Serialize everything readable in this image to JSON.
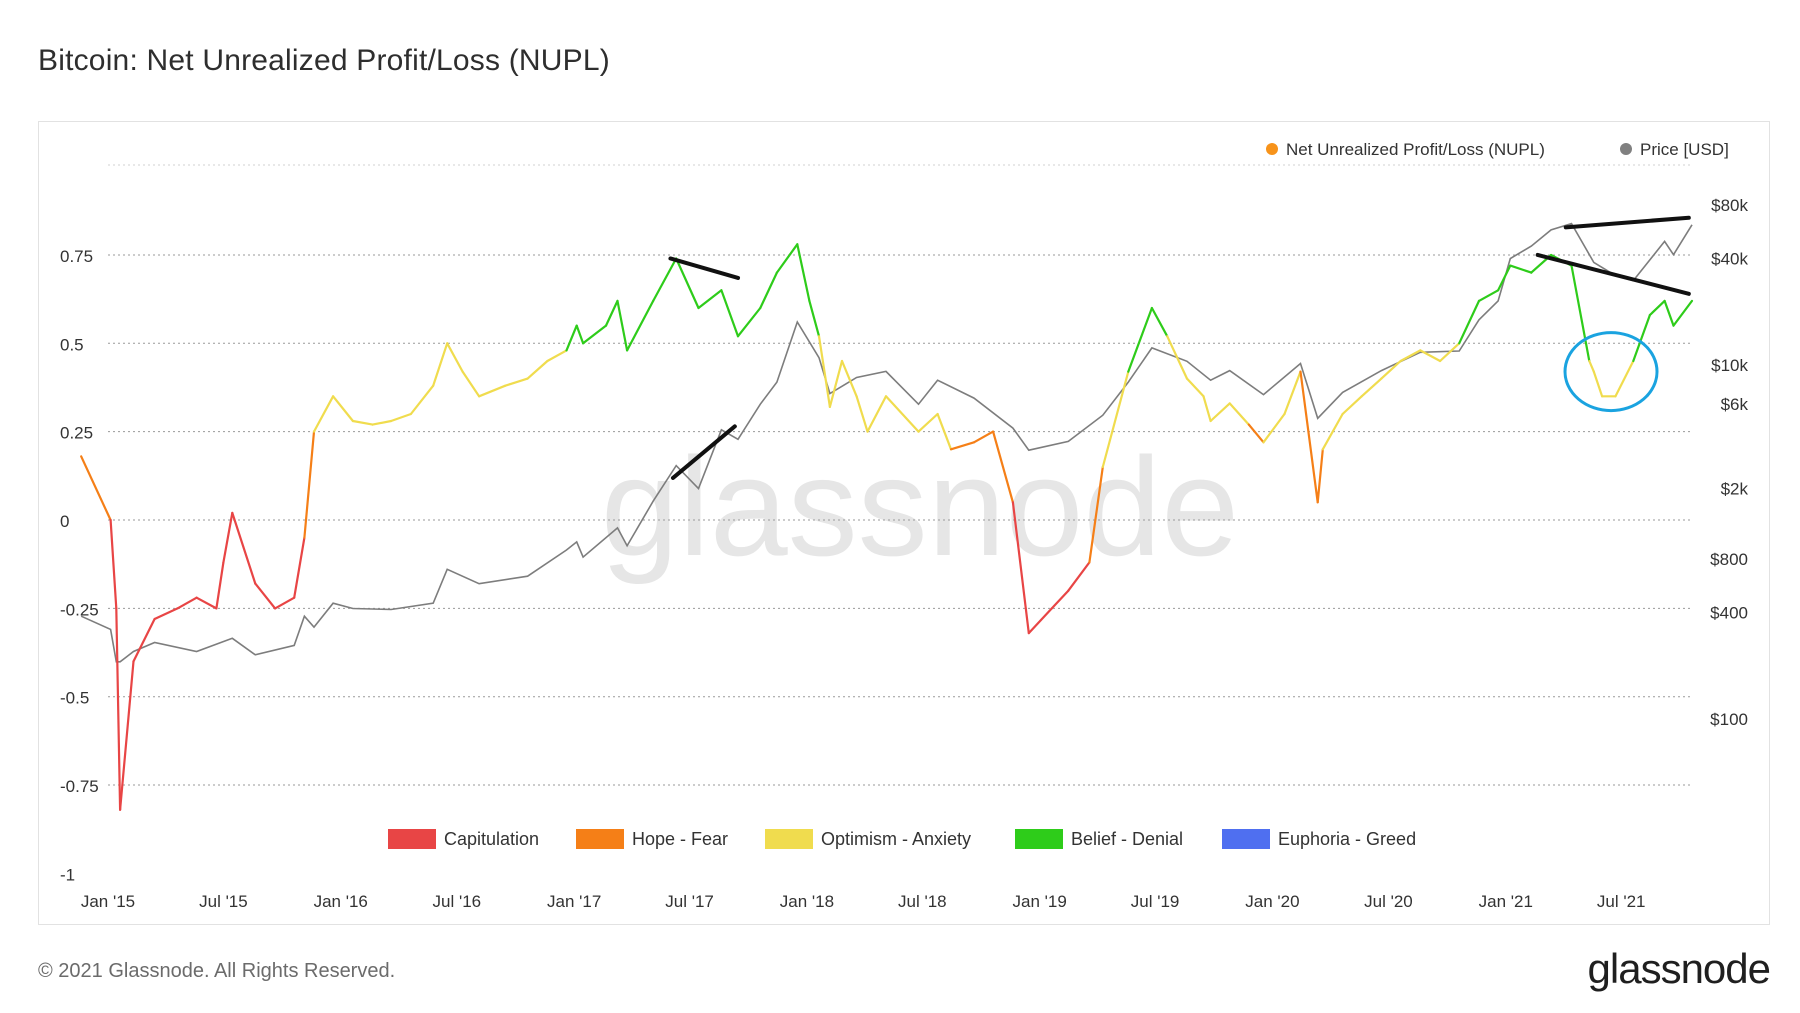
{
  "title": "Bitcoin: Net Unrealized Profit/Loss (NUPL)",
  "footer": {
    "copyright": "© 2021 Glassnode. All Rights Reserved.",
    "logo": "glassnode"
  },
  "watermark": "glassnode",
  "chart_data": {
    "type": "line",
    "title": "Bitcoin: Net Unrealized Profit/Loss (NUPL)",
    "legend_top": [
      {
        "name": "Net Unrealized Profit/Loss (NUPL)",
        "color": "#f7931a"
      },
      {
        "name": "Price [USD]",
        "color": "#808080"
      }
    ],
    "legend_bottom": [
      {
        "name": "Capitulation",
        "color": "#e84545"
      },
      {
        "name": "Hope - Fear",
        "color": "#f57f17"
      },
      {
        "name": "Optimism - Anxiety",
        "color": "#f0dc4e"
      },
      {
        "name": "Belief - Denial",
        "color": "#2ecc1a"
      },
      {
        "name": "Euphoria - Greed",
        "color": "#4f6ff0"
      }
    ],
    "x_ticks": [
      "Jan '15",
      "Jul '15",
      "Jan '16",
      "Jul '16",
      "Jan '17",
      "Jul '17",
      "Jan '18",
      "Jul '18",
      "Jan '19",
      "Jul '19",
      "Jan '20",
      "Jul '20",
      "Jan '21",
      "Jul '21"
    ],
    "x_range": [
      "2015-01-01",
      "2021-10-20"
    ],
    "y_left": {
      "ticks": [
        "0.75",
        "0.5",
        "0.25",
        "0",
        "-0.25",
        "-0.5",
        "-0.75",
        "-1"
      ],
      "range": [
        -1,
        1
      ]
    },
    "y_right": {
      "ticks": [
        "$80k",
        "$40k",
        "$10k",
        "$6k",
        "$2k",
        "$800",
        "$400",
        "$100"
      ],
      "scale": "log"
    },
    "nupl_series": {
      "name": "Net Unrealized Profit/Loss (NUPL)",
      "x": [
        "2014-11-20",
        "2015-01-05",
        "2015-01-14",
        "2015-01-20",
        "2015-02-10",
        "2015-03-15",
        "2015-04-20",
        "2015-05-20",
        "2015-06-20",
        "2015-07-01",
        "2015-07-15",
        "2015-08-20",
        "2015-09-20",
        "2015-10-20",
        "2015-11-05",
        "2015-11-20",
        "2015-12-20",
        "2016-01-20",
        "2016-02-20",
        "2016-03-20",
        "2016-04-20",
        "2016-05-25",
        "2016-06-16",
        "2016-07-10",
        "2016-08-05",
        "2016-09-15",
        "2016-10-20",
        "2016-11-20",
        "2016-12-20",
        "2017-01-05",
        "2017-01-15",
        "2017-02-20",
        "2017-03-10",
        "2017-03-25",
        "2017-05-05",
        "2017-06-10",
        "2017-07-15",
        "2017-08-20",
        "2017-09-15",
        "2017-10-20",
        "2017-11-15",
        "2017-12-17",
        "2018-01-05",
        "2018-01-20",
        "2018-02-06",
        "2018-02-25",
        "2018-03-20",
        "2018-04-06",
        "2018-05-05",
        "2018-06-25",
        "2018-07-25",
        "2018-08-15",
        "2018-09-20",
        "2018-10-20",
        "2018-11-20",
        "2018-12-15",
        "2019-01-20",
        "2019-02-15",
        "2019-03-20",
        "2019-04-10",
        "2019-05-20",
        "2019-06-26",
        "2019-07-20",
        "2019-08-20",
        "2019-09-15",
        "2019-09-26",
        "2019-10-26",
        "2019-11-25",
        "2019-12-18",
        "2020-01-20",
        "2020-02-14",
        "2020-03-12",
        "2020-03-20",
        "2020-04-20",
        "2020-05-20",
        "2020-06-20",
        "2020-07-20",
        "2020-08-20",
        "2020-09-20",
        "2020-10-20",
        "2020-11-20",
        "2020-12-20",
        "2021-01-08",
        "2021-02-10",
        "2021-03-13",
        "2021-04-14",
        "2021-05-12",
        "2021-05-19",
        "2021-06-01",
        "2021-06-22",
        "2021-07-20",
        "2021-08-15",
        "2021-09-07",
        "2021-09-21",
        "2021-10-20"
      ],
      "y": [
        0.18,
        0.0,
        -0.25,
        -0.82,
        -0.4,
        -0.28,
        -0.25,
        -0.22,
        -0.25,
        -0.12,
        0.02,
        -0.18,
        -0.25,
        -0.22,
        -0.05,
        0.25,
        0.35,
        0.28,
        0.27,
        0.28,
        0.3,
        0.38,
        0.5,
        0.42,
        0.35,
        0.38,
        0.4,
        0.45,
        0.48,
        0.55,
        0.5,
        0.55,
        0.62,
        0.48,
        0.62,
        0.74,
        0.6,
        0.65,
        0.52,
        0.6,
        0.7,
        0.78,
        0.62,
        0.52,
        0.32,
        0.45,
        0.35,
        0.25,
        0.35,
        0.25,
        0.3,
        0.2,
        0.22,
        0.25,
        0.05,
        -0.32,
        -0.25,
        -0.2,
        -0.12,
        0.15,
        0.42,
        0.6,
        0.52,
        0.4,
        0.35,
        0.28,
        0.33,
        0.27,
        0.22,
        0.3,
        0.42,
        0.05,
        0.2,
        0.3,
        0.35,
        0.4,
        0.45,
        0.48,
        0.45,
        0.5,
        0.62,
        0.65,
        0.72,
        0.7,
        0.75,
        0.72,
        0.45,
        0.42,
        0.35,
        0.35,
        0.45,
        0.58,
        0.62,
        0.55,
        0.62
      ]
    },
    "price_series": {
      "name": "Price [USD]",
      "x": [
        "2014-11-20",
        "2015-01-05",
        "2015-01-14",
        "2015-01-20",
        "2015-02-10",
        "2015-03-15",
        "2015-05-20",
        "2015-07-15",
        "2015-08-20",
        "2015-10-20",
        "2015-11-05",
        "2015-11-20",
        "2015-12-20",
        "2016-01-20",
        "2016-03-20",
        "2016-05-25",
        "2016-06-16",
        "2016-08-05",
        "2016-10-20",
        "2016-12-20",
        "2017-01-05",
        "2017-01-15",
        "2017-03-10",
        "2017-03-25",
        "2017-05-05",
        "2017-06-10",
        "2017-07-15",
        "2017-08-20",
        "2017-09-15",
        "2017-10-20",
        "2017-11-15",
        "2017-12-17",
        "2018-01-20",
        "2018-02-06",
        "2018-03-20",
        "2018-05-05",
        "2018-06-25",
        "2018-07-25",
        "2018-09-20",
        "2018-11-20",
        "2018-12-15",
        "2019-02-15",
        "2019-04-10",
        "2019-05-20",
        "2019-06-26",
        "2019-08-20",
        "2019-09-26",
        "2019-10-26",
        "2019-12-18",
        "2020-02-14",
        "2020-03-12",
        "2020-04-20",
        "2020-06-20",
        "2020-08-20",
        "2020-10-20",
        "2020-11-20",
        "2020-12-20",
        "2021-01-08",
        "2021-02-10",
        "2021-03-13",
        "2021-04-14",
        "2021-05-19",
        "2021-06-22",
        "2021-07-20",
        "2021-09-07",
        "2021-09-21",
        "2021-10-20"
      ],
      "y": [
        380,
        320,
        210,
        210,
        240,
        270,
        240,
        285,
        230,
        260,
        380,
        330,
        450,
        420,
        415,
        450,
        700,
        580,
        640,
        900,
        1000,
        820,
        1200,
        950,
        1700,
        2700,
        2000,
        4300,
        3800,
        6000,
        8000,
        17500,
        11000,
        6900,
        8500,
        9200,
        6000,
        8200,
        6500,
        4400,
        3300,
        3700,
        5200,
        8000,
        12500,
        10500,
        8200,
        9300,
        6800,
        10200,
        5000,
        7000,
        9300,
        11800,
        12000,
        18000,
        23000,
        40000,
        47000,
        58000,
        63000,
        38000,
        32000,
        30000,
        50000,
        42000,
        62000
      ]
    },
    "annotations": {
      "black_lines": 4,
      "blue_circle": "mid-2021 NUPL dip"
    }
  }
}
